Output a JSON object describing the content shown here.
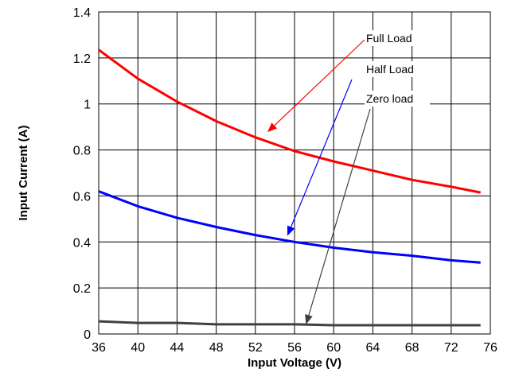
{
  "chart_data": {
    "type": "line",
    "title": "",
    "xlabel": "Input Voltage (V)",
    "ylabel": "Input Current (A)",
    "xlim": [
      36,
      76
    ],
    "ylim": [
      0,
      1.4
    ],
    "xticks": [
      "36",
      "40",
      "44",
      "48",
      "52",
      "56",
      "60",
      "64",
      "68",
      "72",
      "76"
    ],
    "yticks": [
      "0",
      "0.2",
      "0.4",
      "0.6",
      "0.8",
      "1",
      "1.2",
      "1.4"
    ],
    "grid": true,
    "x": [
      36,
      40,
      44,
      48,
      52,
      56,
      60,
      64,
      68,
      72,
      75
    ],
    "series": [
      {
        "name": "Full Load",
        "color": "#ff0000",
        "values": [
          1.235,
          1.11,
          1.01,
          0.925,
          0.855,
          0.795,
          0.75,
          0.71,
          0.67,
          0.64,
          0.615
        ]
      },
      {
        "name": "Half Load",
        "color": "#0000ff",
        "values": [
          0.62,
          0.555,
          0.505,
          0.465,
          0.43,
          0.4,
          0.375,
          0.355,
          0.34,
          0.32,
          0.31
        ]
      },
      {
        "name": "Zero load",
        "color": "#404040",
        "values": [
          0.055,
          0.048,
          0.048,
          0.042,
          0.042,
          0.042,
          0.038,
          0.038,
          0.038,
          0.038,
          0.038
        ]
      }
    ],
    "annotations": [
      {
        "text": "Full Load",
        "arrow_to_x": 53.3,
        "arrow_to_y": 0.88,
        "color": "#ff0000"
      },
      {
        "text": "Half Load",
        "arrow_to_x": 55.3,
        "arrow_to_y": 0.43,
        "color": "#0000ff"
      },
      {
        "text": "Zero load",
        "arrow_to_x": 57.2,
        "arrow_to_y": 0.045,
        "color": "#404040"
      }
    ]
  }
}
